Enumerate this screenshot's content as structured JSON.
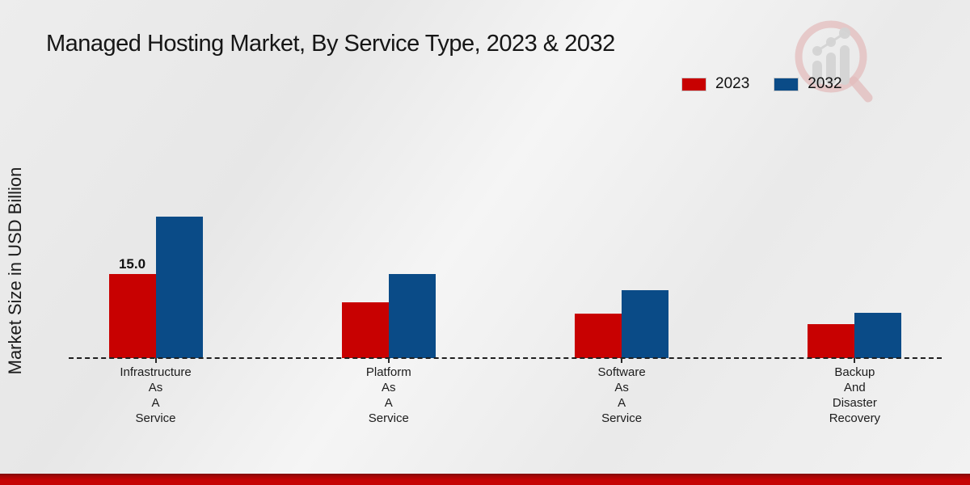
{
  "page": {
    "title": "Managed Hosting Market, By Service Type, 2023 & 2032"
  },
  "chart_data": {
    "type": "bar",
    "title": "Managed Hosting Market, By Service Type, 2023 & 2032",
    "xlabel": "",
    "ylabel": "Market Size in USD Billion",
    "categories": [
      "Infrastructure As A Service",
      "Platform As A Service",
      "Software As A Service",
      "Backup And Disaster Recovery"
    ],
    "category_lines": [
      [
        "Infrastructure",
        "As",
        "A",
        "Service"
      ],
      [
        "Platform",
        "As",
        "A",
        "Service"
      ],
      [
        "Software",
        "As",
        "A",
        "Service"
      ],
      [
        "Backup",
        "And",
        "Disaster",
        "Recovery"
      ]
    ],
    "series": [
      {
        "name": "2023",
        "color": "#c80101",
        "values": [
          15.0,
          10.0,
          8.0,
          6.0
        ]
      },
      {
        "name": "2032",
        "color": "#0a4b87",
        "values": [
          25.2,
          15.0,
          12.1,
          8.1
        ]
      }
    ],
    "bar_labels": [
      {
        "series": 0,
        "category": 0,
        "text": "15.0"
      }
    ],
    "ylim": [
      0,
      30
    ],
    "y_axis_ticks_visible": false,
    "grid": false,
    "baseline_style": "dashed",
    "legend_position": "top-right",
    "colors": {
      "series_2023": "#c80101",
      "series_2032": "#0a4b87",
      "footer_accent": "#c60404",
      "background": "#ededed"
    }
  },
  "watermark": {
    "icon": "magnifier-trend-logo"
  }
}
